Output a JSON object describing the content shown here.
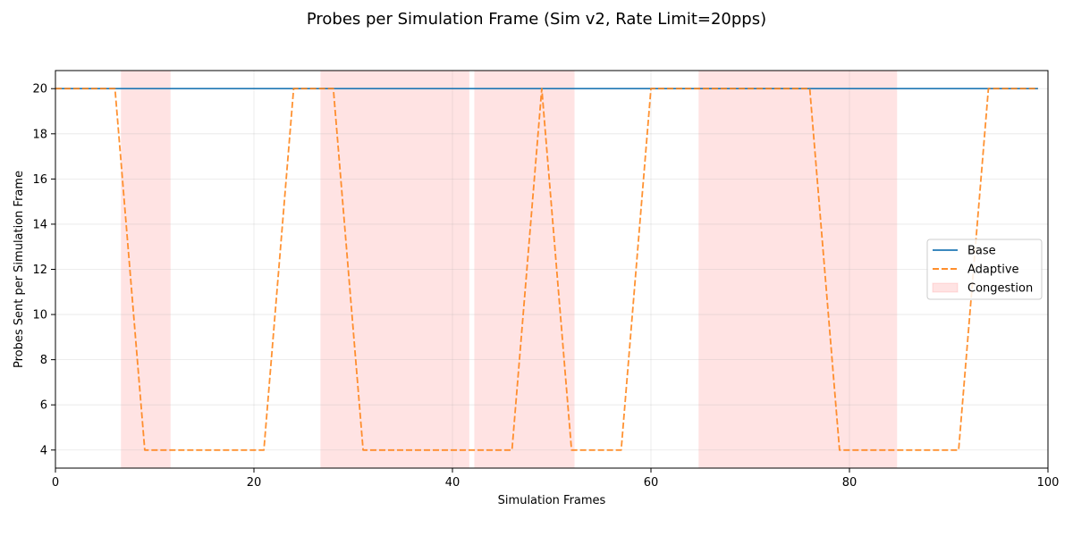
{
  "chart_data": {
    "type": "line",
    "title": "Probes per Simulation Frame (Sim v2, Rate Limit=20pps)",
    "xlabel": "Simulation Frames",
    "ylabel": "Probes Sent per Simulation Frame",
    "xlim": [
      0,
      100
    ],
    "ylim": [
      3.2,
      20.8
    ],
    "xticks": [
      0,
      20,
      40,
      60,
      80,
      100
    ],
    "yticks": [
      4,
      6,
      8,
      10,
      12,
      14,
      16,
      18,
      20
    ],
    "grid": true,
    "legend_position": "right",
    "congestion_intervals": [
      [
        6.6,
        11.6
      ],
      [
        26.7,
        41.7
      ],
      [
        42.2,
        52.3
      ],
      [
        64.8,
        84.8
      ]
    ],
    "series": [
      {
        "name": "Base",
        "style": "solid",
        "color": "#1f77b4",
        "points": [
          [
            0,
            20
          ],
          [
            99,
            20
          ]
        ]
      },
      {
        "name": "Adaptive",
        "style": "dashed",
        "color": "#ff7f0e",
        "points": [
          [
            0,
            20
          ],
          [
            6,
            20
          ],
          [
            9,
            4
          ],
          [
            21,
            4
          ],
          [
            24,
            20
          ],
          [
            28,
            20
          ],
          [
            31,
            4
          ],
          [
            46,
            4
          ],
          [
            49,
            20
          ],
          [
            52,
            4
          ],
          [
            57,
            4
          ],
          [
            60,
            20
          ],
          [
            76,
            20
          ],
          [
            79,
            4
          ],
          [
            91,
            4
          ],
          [
            94,
            20
          ],
          [
            99,
            20
          ]
        ]
      }
    ],
    "legend": [
      {
        "label": "Base",
        "kind": "line",
        "color": "#1f77b4"
      },
      {
        "label": "Adaptive",
        "kind": "dashed",
        "color": "#ff7f0e"
      },
      {
        "label": "Congestion",
        "kind": "patch",
        "color": "#ffcccc"
      }
    ]
  }
}
